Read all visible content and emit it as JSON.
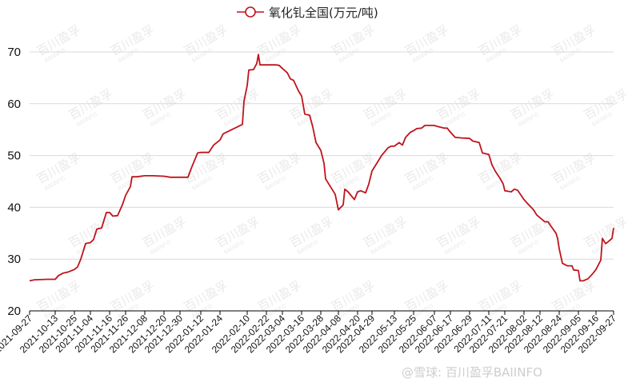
{
  "chart_data": {
    "type": "line",
    "title": "",
    "xlabel": "",
    "ylabel": "",
    "ylim": [
      20,
      70
    ],
    "yticks": [
      20,
      30,
      40,
      50,
      60,
      70
    ],
    "grid": "horizontal",
    "legend_position": "top-center",
    "series": [
      {
        "name": "氧化钆全国(万元/吨)",
        "color": "#c0141c",
        "points": [
          [
            "2021-09-27",
            25.8
          ],
          [
            "2021-09-30",
            26.0
          ],
          [
            "2021-10-08",
            26.1
          ],
          [
            "2021-10-13",
            26.1
          ],
          [
            "2021-10-15",
            26.8
          ],
          [
            "2021-10-18",
            27.3
          ],
          [
            "2021-10-21",
            27.5
          ],
          [
            "2021-10-25",
            28.0
          ],
          [
            "2021-10-27",
            28.5
          ],
          [
            "2021-10-29",
            30.0
          ],
          [
            "2021-11-01",
            33.0
          ],
          [
            "2021-11-04",
            33.2
          ],
          [
            "2021-11-06",
            33.8
          ],
          [
            "2021-11-08",
            35.8
          ],
          [
            "2021-11-11",
            36.0
          ],
          [
            "2021-11-14",
            39.0
          ],
          [
            "2021-11-16",
            39.0
          ],
          [
            "2021-11-18",
            38.3
          ],
          [
            "2021-11-21",
            38.4
          ],
          [
            "2021-11-24",
            40.5
          ],
          [
            "2021-11-26",
            42.3
          ],
          [
            "2021-11-29",
            44.0
          ],
          [
            "2021-11-30",
            45.9
          ],
          [
            "2021-12-03",
            45.9
          ],
          [
            "2021-12-08",
            46.1
          ],
          [
            "2021-12-13",
            46.1
          ],
          [
            "2021-12-20",
            46.0
          ],
          [
            "2021-12-24",
            45.8
          ],
          [
            "2021-12-30",
            45.8
          ],
          [
            "2022-01-04",
            45.8
          ],
          [
            "2022-01-06",
            47.5
          ],
          [
            "2022-01-10",
            50.5
          ],
          [
            "2022-01-12",
            50.6
          ],
          [
            "2022-01-17",
            50.6
          ],
          [
            "2022-01-20",
            52.0
          ],
          [
            "2022-01-24",
            53.0
          ],
          [
            "2022-01-26",
            54.2
          ],
          [
            "2022-02-07",
            56.0
          ],
          [
            "2022-02-08",
            60.5
          ],
          [
            "2022-02-10",
            63.5
          ],
          [
            "2022-02-11",
            66.5
          ],
          [
            "2022-02-14",
            66.6
          ],
          [
            "2022-02-16",
            67.8
          ],
          [
            "2022-02-17",
            69.5
          ],
          [
            "2022-02-18",
            67.5
          ],
          [
            "2022-02-22",
            67.5
          ],
          [
            "2022-02-28",
            67.5
          ],
          [
            "2022-03-02",
            67.4
          ],
          [
            "2022-03-04",
            66.8
          ],
          [
            "2022-03-07",
            66.0
          ],
          [
            "2022-03-09",
            64.8
          ],
          [
            "2022-03-11",
            64.5
          ],
          [
            "2022-03-14",
            62.5
          ],
          [
            "2022-03-16",
            61.5
          ],
          [
            "2022-03-18",
            58.0
          ],
          [
            "2022-03-21",
            57.8
          ],
          [
            "2022-03-23",
            55.5
          ],
          [
            "2022-03-25",
            52.5
          ],
          [
            "2022-03-28",
            51.0
          ],
          [
            "2022-03-30",
            48.5
          ],
          [
            "2022-03-31",
            45.5
          ],
          [
            "2022-04-06",
            42.5
          ],
          [
            "2022-04-08",
            39.5
          ],
          [
            "2022-04-11",
            40.5
          ],
          [
            "2022-04-12",
            43.5
          ],
          [
            "2022-04-14",
            43.0
          ],
          [
            "2022-04-18",
            41.5
          ],
          [
            "2022-04-20",
            43.0
          ],
          [
            "2022-04-22",
            43.2
          ],
          [
            "2022-04-25",
            42.8
          ],
          [
            "2022-04-27",
            44.5
          ],
          [
            "2022-04-29",
            47.0
          ],
          [
            "2022-05-05",
            50.0
          ],
          [
            "2022-05-09",
            51.5
          ],
          [
            "2022-05-11",
            51.8
          ],
          [
            "2022-05-13",
            51.8
          ],
          [
            "2022-05-16",
            52.5
          ],
          [
            "2022-05-18",
            52.0
          ],
          [
            "2022-05-20",
            53.5
          ],
          [
            "2022-05-23",
            54.5
          ],
          [
            "2022-05-25",
            54.8
          ],
          [
            "2022-05-27",
            55.2
          ],
          [
            "2022-05-30",
            55.3
          ],
          [
            "2022-06-01",
            55.8
          ],
          [
            "2022-06-07",
            55.8
          ],
          [
            "2022-06-09",
            55.6
          ],
          [
            "2022-06-13",
            55.3
          ],
          [
            "2022-06-15",
            55.3
          ],
          [
            "2022-06-17",
            54.5
          ],
          [
            "2022-06-20",
            53.5
          ],
          [
            "2022-06-24",
            53.4
          ],
          [
            "2022-06-29",
            53.3
          ],
          [
            "2022-07-01",
            52.8
          ],
          [
            "2022-07-05",
            52.5
          ],
          [
            "2022-07-07",
            50.5
          ],
          [
            "2022-07-11",
            50.2
          ],
          [
            "2022-07-13",
            48.2
          ],
          [
            "2022-07-15",
            47.0
          ],
          [
            "2022-07-18",
            45.6
          ],
          [
            "2022-07-20",
            44.5
          ],
          [
            "2022-07-21",
            43.2
          ],
          [
            "2022-07-25",
            43.0
          ],
          [
            "2022-07-27",
            43.5
          ],
          [
            "2022-07-29",
            43.3
          ],
          [
            "2022-08-02",
            41.5
          ],
          [
            "2022-08-04",
            40.8
          ],
          [
            "2022-08-08",
            39.5
          ],
          [
            "2022-08-10",
            38.5
          ],
          [
            "2022-08-12",
            38.0
          ],
          [
            "2022-08-15",
            37.2
          ],
          [
            "2022-08-17",
            37.2
          ],
          [
            "2022-08-19",
            36.3
          ],
          [
            "2022-08-22",
            35.0
          ],
          [
            "2022-08-23",
            34.0
          ],
          [
            "2022-08-24",
            32.0
          ],
          [
            "2022-08-26",
            29.2
          ],
          [
            "2022-08-29",
            28.7
          ],
          [
            "2022-09-01",
            28.7
          ],
          [
            "2022-09-02",
            27.9
          ],
          [
            "2022-09-05",
            27.8
          ],
          [
            "2022-09-06",
            25.8
          ],
          [
            "2022-09-08",
            25.8
          ],
          [
            "2022-09-11",
            26.2
          ],
          [
            "2022-09-14",
            27.2
          ],
          [
            "2022-09-16",
            28.0
          ],
          [
            "2022-09-19",
            29.8
          ],
          [
            "2022-09-20",
            34.0
          ],
          [
            "2022-09-22",
            33.0
          ],
          [
            "2022-09-23",
            33.2
          ],
          [
            "2022-09-26",
            34.0
          ],
          [
            "2022-09-27",
            36.0
          ]
        ]
      }
    ],
    "x_tick_labels": [
      "2021-09-27",
      "2021-10-13",
      "2021-10-25",
      "2021-11-04",
      "2021-11-16",
      "2021-11-26",
      "2021-12-08",
      "2021-12-20",
      "2021-12-30",
      "2022-01-12",
      "2022-01-24",
      "2022-02-10",
      "2022-02-22",
      "2022-03-04",
      "2022-03-16",
      "2022-03-28",
      "2022-04-08",
      "2022-04-20",
      "2022-04-29",
      "2022-05-13",
      "2022-05-25",
      "2022-06-07",
      "2022-06-17",
      "2022-06-29",
      "2022-07-11",
      "2022-07-21",
      "2022-08-02",
      "2022-08-12",
      "2022-08-24",
      "2022-09-05",
      "2022-09-16",
      "2022-09-27"
    ]
  },
  "watermark": {
    "brand": "百川盈孚",
    "brand_latin": "BAIINFO",
    "footer": "@雪球: 百川盈孚BAIINFO"
  },
  "colors": {
    "line": "#c0141c",
    "gridline": "#d9d9d9",
    "axis": "#000000",
    "watermark": "#d8d8d8"
  }
}
